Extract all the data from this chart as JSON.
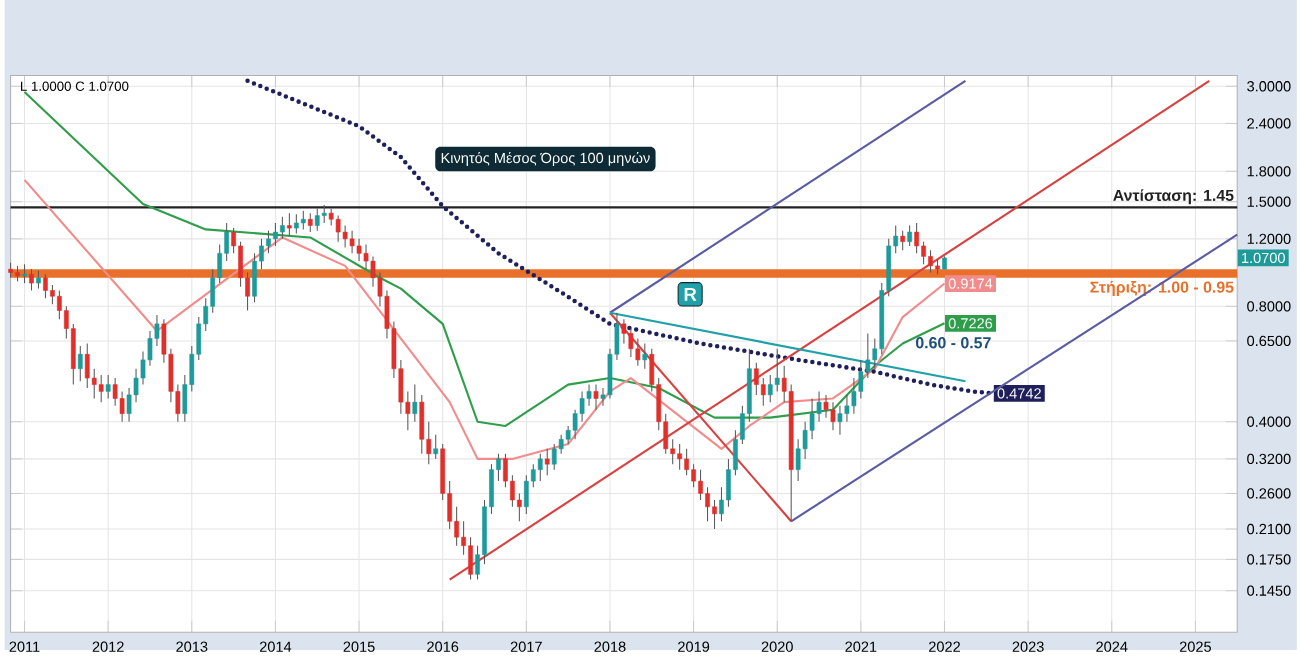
{
  "chart_data": {
    "type": "candlestick",
    "log": "y",
    "grid": true,
    "xlim": [
      "2010-11",
      "2025-07"
    ],
    "ylim": [
      0.113,
      3.2
    ],
    "xticks": [
      "2011",
      "2012",
      "2013",
      "2014",
      "2015",
      "2016",
      "2017",
      "2018",
      "2019",
      "2020",
      "2021",
      "2022",
      "2023",
      "2024",
      "2025"
    ],
    "yticks": [
      {
        "value": 3,
        "label": "3.0000"
      },
      {
        "value": 2.4,
        "label": "2.4000"
      },
      {
        "value": 1.8,
        "label": "1.8000"
      },
      {
        "value": 1.5,
        "label": "1.5000"
      },
      {
        "value": 1.2,
        "label": "1.2000"
      },
      {
        "value": 0.8,
        "label": "0.8000"
      },
      {
        "value": 0.65,
        "label": "0.6500"
      },
      {
        "value": 0.4,
        "label": "0.4000"
      },
      {
        "value": 0.32,
        "label": "0.3200"
      },
      {
        "value": 0.26,
        "label": "0.2600"
      },
      {
        "value": 0.21,
        "label": "0.2100"
      },
      {
        "value": 0.175,
        "label": "0.1750"
      },
      {
        "value": 0.145,
        "label": "0.1450"
      }
    ],
    "x": [
      "2010-11",
      "2010-12",
      "2011-01",
      "2011-02",
      "2011-03",
      "2011-04",
      "2011-05",
      "2011-06",
      "2011-07",
      "2011-08",
      "2011-09",
      "2011-10",
      "2011-11",
      "2011-12",
      "2012-01",
      "2012-02",
      "2012-03",
      "2012-04",
      "2012-05",
      "2012-06",
      "2012-07",
      "2012-08",
      "2012-09",
      "2012-10",
      "2012-11",
      "2012-12",
      "2013-01",
      "2013-02",
      "2013-03",
      "2013-04",
      "2013-05",
      "2013-06",
      "2013-07",
      "2013-08",
      "2013-09",
      "2013-10",
      "2013-11",
      "2013-12",
      "2014-01",
      "2014-02",
      "2014-03",
      "2014-04",
      "2014-05",
      "2014-06",
      "2014-07",
      "2014-08",
      "2014-09",
      "2014-10",
      "2014-11",
      "2014-12",
      "2015-01",
      "2015-02",
      "2015-03",
      "2015-04",
      "2015-05",
      "2015-06",
      "2015-07",
      "2015-08",
      "2015-09",
      "2015-10",
      "2015-11",
      "2015-12",
      "2016-01",
      "2016-02",
      "2016-03",
      "2016-04",
      "2016-05",
      "2016-06",
      "2016-07",
      "2016-08",
      "2016-09",
      "2016-10",
      "2016-11",
      "2016-12",
      "2017-01",
      "2017-02",
      "2017-03",
      "2017-04",
      "2017-05",
      "2017-06",
      "2017-07",
      "2017-08",
      "2017-09",
      "2017-10",
      "2017-11",
      "2017-12",
      "2018-01",
      "2018-02",
      "2018-03",
      "2018-04",
      "2018-05",
      "2018-06",
      "2018-07",
      "2018-08",
      "2018-09",
      "2018-10",
      "2018-11",
      "2018-12",
      "2019-01",
      "2019-02",
      "2019-03",
      "2019-04",
      "2019-05",
      "2019-06",
      "2019-07",
      "2019-08",
      "2019-09",
      "2019-10",
      "2019-11",
      "2019-12",
      "2020-01",
      "2020-02",
      "2020-03",
      "2020-04",
      "2020-05",
      "2020-06",
      "2020-07",
      "2020-08",
      "2020-09",
      "2020-10",
      "2020-11",
      "2020-12",
      "2021-01",
      "2021-02",
      "2021-03",
      "2021-04",
      "2021-05",
      "2021-06",
      "2021-07",
      "2021-08",
      "2021-09",
      "2021-10",
      "2021-11",
      "2021-12",
      "2022-01"
    ],
    "ohlc": [
      [
        1.0,
        1.04,
        0.95,
        0.98
      ],
      [
        0.98,
        1.02,
        0.93,
        0.96
      ],
      [
        0.96,
        1.03,
        0.92,
        0.97
      ],
      [
        0.97,
        1.0,
        0.88,
        0.92
      ],
      [
        0.92,
        0.99,
        0.89,
        0.95
      ],
      [
        0.95,
        0.97,
        0.84,
        0.88
      ],
      [
        0.88,
        0.91,
        0.81,
        0.85
      ],
      [
        0.85,
        0.88,
        0.74,
        0.78
      ],
      [
        0.78,
        0.8,
        0.66,
        0.7
      ],
      [
        0.7,
        0.72,
        0.5,
        0.55
      ],
      [
        0.55,
        0.63,
        0.51,
        0.6
      ],
      [
        0.6,
        0.64,
        0.49,
        0.52
      ],
      [
        0.52,
        0.55,
        0.46,
        0.5
      ],
      [
        0.5,
        0.53,
        0.45,
        0.48
      ],
      [
        0.48,
        0.53,
        0.46,
        0.5
      ],
      [
        0.5,
        0.52,
        0.44,
        0.46
      ],
      [
        0.46,
        0.48,
        0.4,
        0.42
      ],
      [
        0.42,
        0.49,
        0.4,
        0.47
      ],
      [
        0.47,
        0.55,
        0.45,
        0.52
      ],
      [
        0.52,
        0.61,
        0.5,
        0.58
      ],
      [
        0.58,
        0.69,
        0.56,
        0.66
      ],
      [
        0.66,
        0.76,
        0.63,
        0.72
      ],
      [
        0.72,
        0.74,
        0.57,
        0.6
      ],
      [
        0.6,
        0.62,
        0.45,
        0.48
      ],
      [
        0.48,
        0.5,
        0.4,
        0.42
      ],
      [
        0.42,
        0.53,
        0.4,
        0.5
      ],
      [
        0.5,
        0.63,
        0.48,
        0.6
      ],
      [
        0.6,
        0.75,
        0.58,
        0.72
      ],
      [
        0.72,
        0.84,
        0.69,
        0.8
      ],
      [
        0.8,
        1.0,
        0.77,
        0.95
      ],
      [
        0.95,
        1.16,
        0.92,
        1.1
      ],
      [
        1.1,
        1.32,
        1.05,
        1.25
      ],
      [
        1.25,
        1.28,
        1.1,
        1.15
      ],
      [
        1.15,
        1.18,
        0.9,
        0.95
      ],
      [
        0.95,
        0.98,
        0.78,
        0.85
      ],
      [
        0.85,
        1.1,
        0.82,
        1.05
      ],
      [
        1.05,
        1.2,
        1.0,
        1.15
      ],
      [
        1.15,
        1.26,
        1.1,
        1.2
      ],
      [
        1.2,
        1.32,
        1.15,
        1.25
      ],
      [
        1.25,
        1.37,
        1.2,
        1.3
      ],
      [
        1.3,
        1.4,
        1.22,
        1.28
      ],
      [
        1.28,
        1.39,
        1.24,
        1.32
      ],
      [
        1.32,
        1.42,
        1.27,
        1.35
      ],
      [
        1.35,
        1.4,
        1.25,
        1.3
      ],
      [
        1.3,
        1.44,
        1.26,
        1.38
      ],
      [
        1.38,
        1.47,
        1.32,
        1.4
      ],
      [
        1.4,
        1.44,
        1.3,
        1.35
      ],
      [
        1.35,
        1.38,
        1.18,
        1.25
      ],
      [
        1.25,
        1.3,
        1.14,
        1.2
      ],
      [
        1.2,
        1.26,
        1.1,
        1.15
      ],
      [
        1.15,
        1.2,
        1.05,
        1.1
      ],
      [
        1.1,
        1.16,
        1.0,
        1.05
      ],
      [
        1.05,
        1.08,
        0.9,
        0.95
      ],
      [
        0.95,
        0.98,
        0.8,
        0.85
      ],
      [
        0.85,
        0.88,
        0.66,
        0.7
      ],
      [
        0.7,
        0.73,
        0.52,
        0.55
      ],
      [
        0.55,
        0.58,
        0.42,
        0.45
      ],
      [
        0.45,
        0.48,
        0.38,
        0.42
      ],
      [
        0.42,
        0.5,
        0.4,
        0.45
      ],
      [
        0.45,
        0.47,
        0.33,
        0.36
      ],
      [
        0.36,
        0.4,
        0.31,
        0.33
      ],
      [
        0.33,
        0.37,
        0.32,
        0.34
      ],
      [
        0.34,
        0.35,
        0.25,
        0.26
      ],
      [
        0.26,
        0.28,
        0.21,
        0.22
      ],
      [
        0.22,
        0.24,
        0.19,
        0.2
      ],
      [
        0.2,
        0.22,
        0.18,
        0.19
      ],
      [
        0.19,
        0.2,
        0.155,
        0.16
      ],
      [
        0.16,
        0.19,
        0.155,
        0.18
      ],
      [
        0.18,
        0.25,
        0.17,
        0.24
      ],
      [
        0.24,
        0.31,
        0.23,
        0.3
      ],
      [
        0.3,
        0.33,
        0.28,
        0.32
      ],
      [
        0.32,
        0.33,
        0.27,
        0.28
      ],
      [
        0.28,
        0.29,
        0.24,
        0.25
      ],
      [
        0.25,
        0.26,
        0.22,
        0.24
      ],
      [
        0.24,
        0.29,
        0.23,
        0.28
      ],
      [
        0.28,
        0.31,
        0.27,
        0.3
      ],
      [
        0.3,
        0.33,
        0.28,
        0.32
      ],
      [
        0.32,
        0.34,
        0.29,
        0.31
      ],
      [
        0.31,
        0.35,
        0.3,
        0.34
      ],
      [
        0.34,
        0.37,
        0.33,
        0.36
      ],
      [
        0.36,
        0.39,
        0.35,
        0.38
      ],
      [
        0.38,
        0.43,
        0.36,
        0.42
      ],
      [
        0.42,
        0.48,
        0.4,
        0.46
      ],
      [
        0.46,
        0.5,
        0.44,
        0.48
      ],
      [
        0.48,
        0.5,
        0.43,
        0.46
      ],
      [
        0.46,
        0.49,
        0.44,
        0.47
      ],
      [
        0.47,
        0.62,
        0.46,
        0.6
      ],
      [
        0.6,
        0.77,
        0.58,
        0.72
      ],
      [
        0.72,
        0.74,
        0.64,
        0.68
      ],
      [
        0.68,
        0.7,
        0.59,
        0.62
      ],
      [
        0.62,
        0.66,
        0.56,
        0.58
      ],
      [
        0.58,
        0.64,
        0.55,
        0.6
      ],
      [
        0.6,
        0.62,
        0.48,
        0.5
      ],
      [
        0.5,
        0.52,
        0.38,
        0.4
      ],
      [
        0.4,
        0.42,
        0.33,
        0.34
      ],
      [
        0.34,
        0.36,
        0.31,
        0.33
      ],
      [
        0.33,
        0.35,
        0.3,
        0.32
      ],
      [
        0.32,
        0.34,
        0.29,
        0.3
      ],
      [
        0.3,
        0.31,
        0.27,
        0.28
      ],
      [
        0.28,
        0.3,
        0.25,
        0.26
      ],
      [
        0.26,
        0.27,
        0.22,
        0.24
      ],
      [
        0.24,
        0.25,
        0.21,
        0.23
      ],
      [
        0.23,
        0.27,
        0.22,
        0.25
      ],
      [
        0.25,
        0.32,
        0.24,
        0.3
      ],
      [
        0.3,
        0.38,
        0.29,
        0.36
      ],
      [
        0.36,
        0.44,
        0.35,
        0.42
      ],
      [
        0.42,
        0.62,
        0.4,
        0.55
      ],
      [
        0.55,
        0.57,
        0.47,
        0.5
      ],
      [
        0.5,
        0.52,
        0.44,
        0.47
      ],
      [
        0.47,
        0.53,
        0.45,
        0.5
      ],
      [
        0.5,
        0.62,
        0.48,
        0.52
      ],
      [
        0.52,
        0.56,
        0.45,
        0.48
      ],
      [
        0.48,
        0.5,
        0.22,
        0.3
      ],
      [
        0.3,
        0.36,
        0.28,
        0.34
      ],
      [
        0.34,
        0.4,
        0.32,
        0.38
      ],
      [
        0.38,
        0.46,
        0.36,
        0.42
      ],
      [
        0.42,
        0.48,
        0.4,
        0.45
      ],
      [
        0.45,
        0.47,
        0.41,
        0.43
      ],
      [
        0.43,
        0.45,
        0.38,
        0.4
      ],
      [
        0.4,
        0.44,
        0.37,
        0.42
      ],
      [
        0.42,
        0.47,
        0.4,
        0.44
      ],
      [
        0.44,
        0.52,
        0.42,
        0.48
      ],
      [
        0.48,
        0.58,
        0.46,
        0.54
      ],
      [
        0.54,
        0.68,
        0.52,
        0.58
      ],
      [
        0.58,
        0.66,
        0.55,
        0.62
      ],
      [
        0.62,
        0.92,
        0.6,
        0.88
      ],
      [
        0.88,
        1.2,
        0.85,
        1.15
      ],
      [
        1.15,
        1.3,
        1.1,
        1.22
      ],
      [
        1.22,
        1.26,
        1.12,
        1.18
      ],
      [
        1.18,
        1.3,
        1.15,
        1.25
      ],
      [
        1.25,
        1.32,
        1.1,
        1.15
      ],
      [
        1.15,
        1.18,
        1.03,
        1.08
      ],
      [
        1.08,
        1.12,
        0.98,
        1.02
      ],
      [
        1.02,
        1.06,
        0.97,
        1.0
      ],
      [
        1.0,
        1.08,
        1.0,
        1.07
      ]
    ],
    "value_labels": [
      null,
      null,
      null,
      null,
      null,
      null,
      null,
      null,
      null,
      null,
      null,
      null,
      null,
      null,
      null,
      null,
      null,
      null,
      null,
      null,
      null,
      null,
      null,
      null,
      null,
      null,
      null,
      null,
      null,
      null,
      null,
      null,
      null,
      null,
      null,
      null,
      null,
      null,
      null,
      null,
      null,
      null,
      null,
      null,
      null,
      null,
      null,
      null,
      null,
      null,
      null,
      null,
      null,
      null,
      null,
      null,
      null,
      null,
      null,
      null,
      null,
      null,
      null,
      null,
      null,
      null,
      null,
      null,
      null,
      null,
      null,
      null,
      null,
      null,
      null,
      null,
      null,
      null,
      null,
      null,
      null,
      null,
      null,
      null,
      null,
      null,
      null,
      null,
      null,
      null,
      null,
      null,
      null,
      null,
      null,
      null,
      null,
      null,
      null,
      null,
      null,
      null,
      null,
      null,
      null,
      null,
      null,
      null,
      null,
      null,
      null,
      null,
      null,
      null,
      null,
      null,
      null,
      null,
      null,
      null,
      null,
      null,
      null,
      null,
      null,
      null,
      null,
      null,
      null,
      null,
      null,
      null,
      null,
      null,
      "1.0700"
    ],
    "series": [
      {
        "type": "line",
        "color": "#2e9e4a",
        "x": [
          "2011-01",
          "2012-06",
          "2013-03",
          "2014-06",
          "2015-04",
          "2015-07",
          "2016-01",
          "2016-06",
          "2016-10",
          "2017-07",
          "2018-01",
          "2018-08",
          "2019-04",
          "2019-12",
          "2020-09",
          "2021-03",
          "2021-07",
          "2022-01"
        ],
        "values": [
          2.9,
          1.48,
          1.27,
          1.21,
          0.95,
          0.89,
          0.72,
          0.4,
          0.39,
          0.5,
          0.52,
          0.49,
          0.41,
          0.41,
          0.43,
          0.56,
          0.64,
          0.7226
        ],
        "value_labels": [
          null,
          null,
          null,
          null,
          null,
          null,
          null,
          null,
          null,
          null,
          null,
          null,
          null,
          null,
          null,
          null,
          null,
          "0.7226"
        ]
      },
      {
        "type": "line",
        "color": "#f28c8c",
        "x": [
          "2011-01",
          "2012-08",
          "2014-02",
          "2014-11",
          "2016-02",
          "2016-06",
          "2016-11",
          "2017-07",
          "2018-01",
          "2018-04",
          "2019-05",
          "2019-09",
          "2020-02",
          "2020-09",
          "2021-03",
          "2021-07",
          "2022-01"
        ],
        "values": [
          1.71,
          0.69,
          1.21,
          1.02,
          0.45,
          0.32,
          0.32,
          0.35,
          0.48,
          0.52,
          0.34,
          0.39,
          0.45,
          0.46,
          0.55,
          0.75,
          0.9174
        ],
        "value_labels": [
          null,
          null,
          null,
          null,
          null,
          null,
          null,
          null,
          null,
          null,
          null,
          null,
          null,
          null,
          null,
          null,
          "0.9174"
        ]
      },
      {
        "type": "line",
        "color": "#1f1f5c",
        "line_style": "dotted",
        "x": [
          "2013-09",
          "2015-01",
          "2015-07",
          "2016-01",
          "2016-09",
          "2017-06",
          "2018-01",
          "2019-02",
          "2020-04",
          "2021-03",
          "2021-11",
          "2022-05",
          "2022-08"
        ],
        "values": [
          3.1,
          2.36,
          1.96,
          1.46,
          1.1,
          0.87,
          0.72,
          0.64,
          0.58,
          0.54,
          0.5,
          0.48,
          0.4742
        ],
        "value_labels": [
          null,
          null,
          null,
          null,
          null,
          null,
          null,
          null,
          null,
          null,
          null,
          null,
          "0.4742"
        ]
      },
      {
        "type": "line",
        "color": "#d94040",
        "x": [
          "2018-01",
          "2020-03"
        ],
        "values": [
          0.77,
          0.22
        ]
      },
      {
        "type": "line",
        "color": "#d94040",
        "x": [
          "2016-02",
          "2025-03"
        ],
        "values": [
          0.155,
          3.1
        ]
      },
      {
        "type": "line",
        "color": "#5b5ba3",
        "x": [
          "2018-01",
          "2022-04"
        ],
        "values": [
          0.77,
          3.1
        ]
      },
      {
        "type": "line",
        "color": "#5b5ba3",
        "x": [
          "2020-03",
          "2025-07"
        ],
        "values": [
          0.22,
          1.23
        ]
      },
      {
        "type": "line",
        "color": "#20a0a8",
        "x": [
          "2018-01",
          "2022-04"
        ],
        "values": [
          0.77,
          0.51
        ]
      }
    ],
    "ref_lines": [
      {
        "axis": "y",
        "value": 1.45,
        "label": "Αντίσταση: 1.45",
        "color": "#222222"
      }
    ],
    "bands": [
      {
        "axis": "y",
        "from": 0.95,
        "to": 1.0,
        "label": "Στήριξη: 1.00 - 0.95",
        "color": "#e8702a"
      }
    ],
    "annotations": [
      "L 1.0000 C 1.0700",
      "Κινητός Μέσος Όρος 100 μηνών",
      "R",
      "0.60 - 0.57"
    ]
  }
}
